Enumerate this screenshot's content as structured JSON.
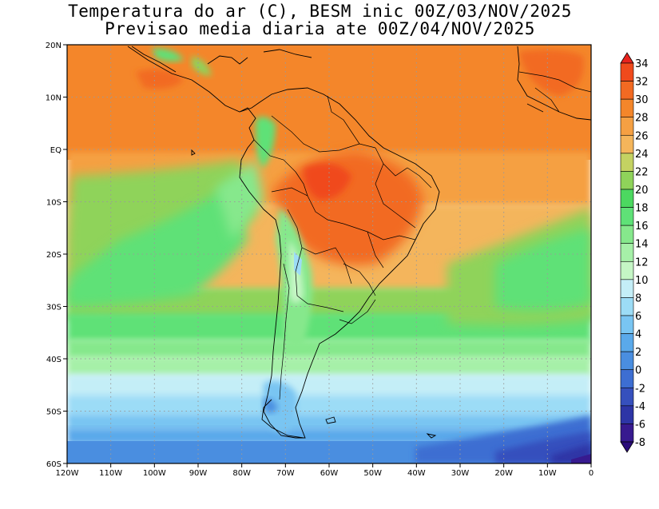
{
  "title": {
    "line1": "Temperatura do ar (C), BESM inic 00Z/03/NOV/2025",
    "line2": "Previsao media diaria ate 00Z/04/NOV/2025"
  },
  "map": {
    "lat_labels": [
      "20N",
      "10N",
      "EQ",
      "10S",
      "20S",
      "30S",
      "40S",
      "50S",
      "60S"
    ],
    "lon_labels": [
      "120W",
      "110W",
      "100W",
      "90W",
      "80W",
      "70W",
      "60W",
      "50W",
      "40W",
      "30W",
      "20W",
      "10W",
      "0"
    ],
    "lat_values": [
      20,
      10,
      0,
      -10,
      -20,
      -30,
      -40,
      -50,
      -60
    ],
    "lon_values": [
      -120,
      -110,
      -100,
      -90,
      -80,
      -70,
      -60,
      -50,
      -40,
      -30,
      -20,
      -10,
      0
    ],
    "lon_range": [
      -120,
      0
    ],
    "lat_range": [
      -60,
      20
    ],
    "grid": "dotted"
  },
  "colorbar": {
    "labels": [
      "34",
      "32",
      "30",
      "28",
      "26",
      "24",
      "22",
      "20",
      "18",
      "16",
      "14",
      "12",
      "10",
      "8",
      "6",
      "4",
      "2",
      "0",
      "-2",
      "-4",
      "-6",
      "-8"
    ],
    "colors": [
      "#e8231e",
      "#f04a1c",
      "#f26a22",
      "#f4862a",
      "#f5a043",
      "#f4b55b",
      "#c4d262",
      "#8fd35a",
      "#4cd860",
      "#5fe177",
      "#86e88c",
      "#a6f0a8",
      "#c5f6c5",
      "#c4eef7",
      "#9cdcf6",
      "#79c5f2",
      "#5aa9ea",
      "#4a8ee0",
      "#3d6ed2",
      "#3650bd",
      "#2d35a6",
      "#371a8f",
      "#2a0c7a"
    ]
  }
}
